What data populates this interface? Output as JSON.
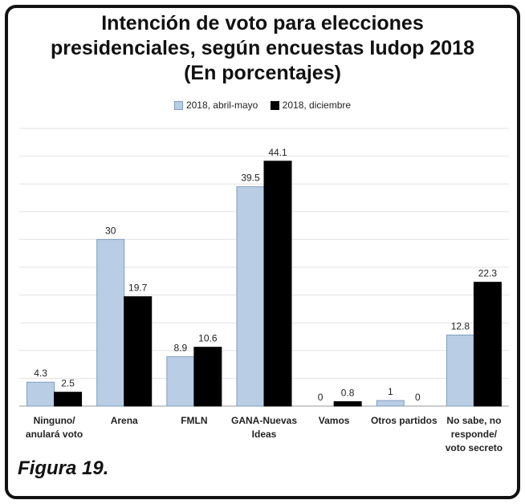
{
  "title_lines": [
    "Intención de voto para elecciones",
    "presidenciales, según encuestas Iudop 2018",
    "(En porcentajes)"
  ],
  "figure_caption": "Figura 19.",
  "colors": {
    "series_a": "#b9cde5",
    "series_b": "#000000"
  },
  "chart_data": {
    "type": "bar",
    "title": "Intención de voto para elecciones presidenciales, según encuestas Iudop 2018 (En porcentajes)",
    "categories": [
      [
        "Ninguno/",
        "anulará voto"
      ],
      [
        "Arena"
      ],
      [
        "FMLN"
      ],
      [
        "GANA-Nuevas",
        "Ideas"
      ],
      [
        "Vamos"
      ],
      [
        "Otros partidos"
      ],
      [
        "No sabe, no",
        "responde/",
        "voto secreto"
      ]
    ],
    "series": [
      {
        "name": "2018, abril-mayo",
        "values": [
          4.3,
          30,
          8.9,
          39.5,
          0,
          1,
          12.8
        ]
      },
      {
        "name": "2018, diciembre",
        "values": [
          2.5,
          19.7,
          10.6,
          44.1,
          0.8,
          0,
          22.3
        ]
      }
    ],
    "ylim": [
      0,
      50
    ],
    "legend": "top-center",
    "grid": true
  }
}
